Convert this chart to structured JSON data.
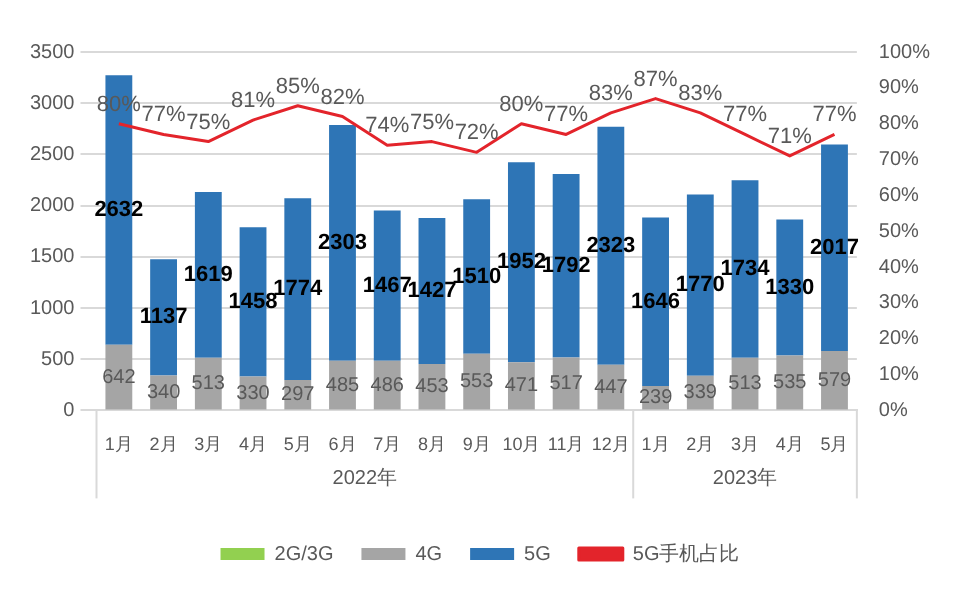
{
  "chart_data": {
    "type": "bar",
    "stacked": true,
    "categories": [
      "1月",
      "2月",
      "3月",
      "4月",
      "5月",
      "6月",
      "7月",
      "8月",
      "9月",
      "10月",
      "11月",
      "12月",
      "1月",
      "2月",
      "3月",
      "4月",
      "5月"
    ],
    "series": [
      {
        "name": "2G/3G",
        "color": "#92d050",
        "values": [
          0,
          0,
          0,
          0,
          0,
          0,
          0,
          0,
          0,
          0,
          0,
          0,
          0,
          0,
          0,
          0,
          0
        ]
      },
      {
        "name": "4G",
        "color": "#a5a5a5",
        "values": [
          642,
          340,
          513,
          330,
          297,
          485,
          486,
          453,
          553,
          471,
          517,
          447,
          239,
          339,
          513,
          535,
          579
        ],
        "value_labels": [
          "642",
          "340",
          "513",
          "330",
          "297",
          "485",
          "486",
          "453",
          "553",
          "471",
          "517",
          "447",
          "239",
          "339",
          "513",
          "535",
          "579"
        ]
      },
      {
        "name": "5G",
        "color": "#2e75b6",
        "values": [
          2632,
          1137,
          1619,
          1458,
          1774,
          2303,
          1467,
          1427,
          1510,
          1952,
          1792,
          2323,
          1646,
          1770,
          1734,
          1330,
          2017
        ],
        "value_labels": [
          "2632",
          "1137",
          "1619",
          "1458",
          "1774",
          "2303",
          "1467",
          "1427",
          "1510",
          "1952",
          "1792",
          "2323",
          "1646",
          "1770",
          "1734",
          "1330",
          "2017"
        ]
      },
      {
        "name": "5G手机占比",
        "type": "line",
        "axis": "y2",
        "color": "#e3242b",
        "marker": "none",
        "values": [
          80,
          77,
          75,
          81,
          85,
          82,
          74,
          75,
          72,
          80,
          77,
          83,
          87,
          83,
          77,
          71,
          77
        ],
        "value_labels": [
          "80%",
          "77%",
          "75%",
          "81%",
          "85%",
          "82%",
          "74%",
          "75%",
          "72%",
          "80%",
          "77%",
          "83%",
          "87%",
          "83%",
          "77%",
          "71%",
          "77%"
        ]
      }
    ],
    "ylim": [
      0,
      3500
    ],
    "yticks": [
      0,
      500,
      1000,
      1500,
      2000,
      2500,
      3000,
      3500
    ],
    "y2lim": [
      0,
      100
    ],
    "y2ticks": [
      {
        "value": 0,
        "label": "0%"
      },
      {
        "value": 10,
        "label": "10%"
      },
      {
        "value": 20,
        "label": "20%"
      },
      {
        "value": 30,
        "label": "30%"
      },
      {
        "value": 40,
        "label": "40%"
      },
      {
        "value": 50,
        "label": "50%"
      },
      {
        "value": 60,
        "label": "60%"
      },
      {
        "value": 70,
        "label": "70%"
      },
      {
        "value": 80,
        "label": "80%"
      },
      {
        "value": 90,
        "label": "90%"
      },
      {
        "value": 100,
        "label": "100%"
      }
    ],
    "annotations": [
      "2022年",
      "2023年"
    ],
    "grid": "y",
    "legend": "bottom"
  }
}
